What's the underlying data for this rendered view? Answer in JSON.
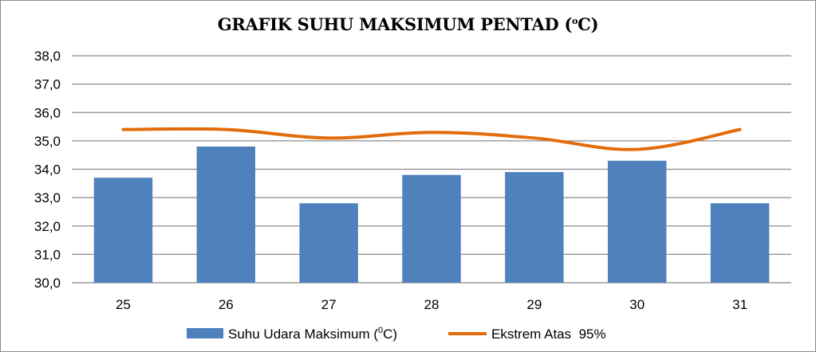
{
  "chart_data": {
    "type": "bar",
    "title": "GRAFIK SUHU MAKSIMUM PENTAD (°C)",
    "title_prefix": "GRAFIK SUHU MAKSIMUM PENTAD (",
    "title_degree": "o",
    "title_suffix": "C)",
    "categories": [
      "25",
      "26",
      "27",
      "28",
      "29",
      "30",
      "31"
    ],
    "ylim": [
      30,
      38
    ],
    "yticks": [
      "30,0",
      "31,0",
      "32,0",
      "33,0",
      "34,0",
      "35,0",
      "36,0",
      "37,0",
      "38,0"
    ],
    "grid": true,
    "legend_position": "bottom",
    "series": [
      {
        "name": "Suhu Udara Maksimum (0C)",
        "name_prefix": "Suhu Udara Maksimum (",
        "name_sup": "0",
        "name_suffix": "C)",
        "type": "bar",
        "color": "#4f81bd",
        "values": [
          33.7,
          34.8,
          32.8,
          33.8,
          33.9,
          34.3,
          32.8
        ]
      },
      {
        "name": "Ekstrem Atas  95%",
        "type": "line",
        "color": "#e36c0a",
        "values": [
          35.4,
          35.4,
          35.1,
          35.3,
          35.1,
          34.7,
          35.4
        ]
      }
    ]
  }
}
